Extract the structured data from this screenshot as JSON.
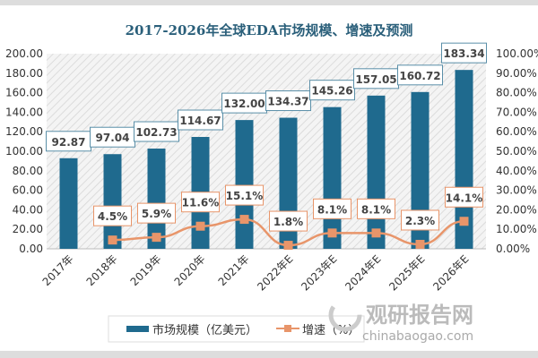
{
  "chart_data": {
    "type": "bar",
    "title": "2017-2026年全球EDA市场规模、增速及预测",
    "categories": [
      "2017年",
      "2018年",
      "2019年",
      "2020年",
      "2021年",
      "2022年E",
      "2023年E",
      "2024年E",
      "2025年E",
      "2026年E"
    ],
    "series": [
      {
        "name": "市场规模（亿美元）",
        "type": "bar",
        "axis": "left",
        "color": "#1f6a8e",
        "values": [
          92.87,
          97.04,
          102.73,
          114.67,
          132.0,
          134.37,
          145.26,
          157.05,
          160.72,
          183.34
        ]
      },
      {
        "name": "增速（%）",
        "type": "line",
        "axis": "right",
        "color": "#e8956a",
        "values": [
          null,
          4.5,
          5.9,
          11.6,
          15.1,
          1.8,
          8.1,
          8.1,
          2.3,
          14.1
        ]
      }
    ],
    "y_left": {
      "range": [
        0,
        200
      ],
      "ticks": [
        "0.00",
        "20.00",
        "40.00",
        "60.00",
        "80.00",
        "100.00",
        "120.00",
        "140.00",
        "160.00",
        "180.00",
        "200.00"
      ]
    },
    "y_right": {
      "range": [
        0,
        100
      ],
      "ticks": [
        "0.00%",
        "10.00%",
        "20.00%",
        "30.00%",
        "40.00%",
        "50.00%",
        "60.00%",
        "70.00%",
        "80.00%",
        "90.00%",
        "100.00%"
      ]
    },
    "bar_labels": [
      "92.87",
      "97.04",
      "102.73",
      "114.67",
      "132.00",
      "134.37",
      "145.26",
      "157.05",
      "160.72",
      "183.34"
    ],
    "line_labels": [
      "",
      "4.5%",
      "5.9%",
      "11.6%",
      "15.1%",
      "1.8%",
      "8.1%",
      "8.1%",
      "2.3%",
      "14.1%"
    ],
    "legend_position": "bottom",
    "grid": false
  },
  "watermark": {
    "brand": "观研报告网",
    "url": "chinabaogao.com"
  }
}
